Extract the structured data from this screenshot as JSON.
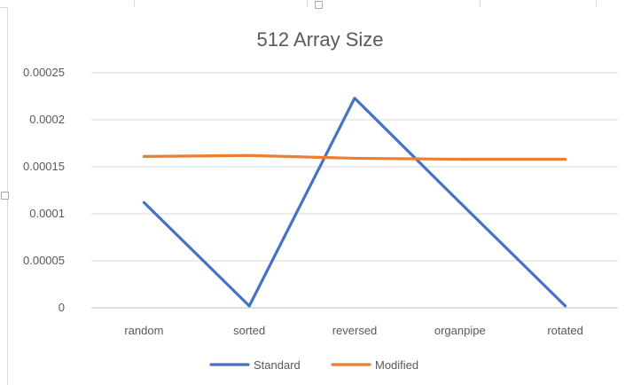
{
  "chart_data": {
    "type": "line",
    "title": "512 Array Size",
    "categories": [
      "random",
      "sorted",
      "reversed",
      "organpipe",
      "rotated"
    ],
    "series": [
      {
        "name": "Standard",
        "color": "#4472C4",
        "values": [
          0.000112,
          2e-06,
          0.000223,
          0.000112,
          2e-06
        ]
      },
      {
        "name": "Modified",
        "color": "#ED7D31",
        "values": [
          0.000161,
          0.000162,
          0.000159,
          0.000158,
          0.000158
        ]
      }
    ],
    "yticks": [
      "0.00025",
      "0.0002",
      "0.00015",
      "0.0001",
      "0.00005",
      "0"
    ],
    "ytick_values": [
      0.00025,
      0.0002,
      0.00015,
      0.0001,
      5e-05,
      0
    ],
    "ylim": [
      0,
      0.00025
    ],
    "grid": true,
    "legend_position": "bottom"
  }
}
